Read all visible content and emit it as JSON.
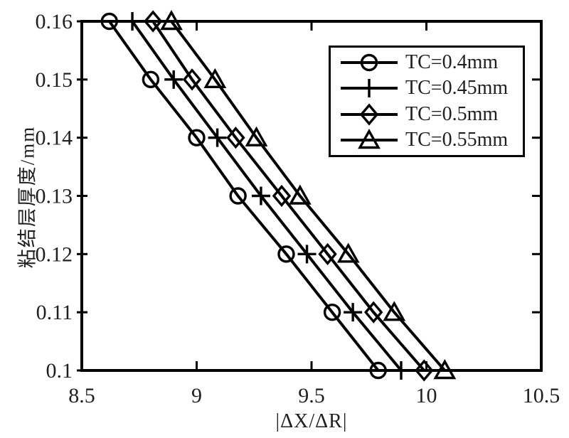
{
  "chart_data": {
    "type": "line",
    "title": "",
    "xlabel": "|ΔX/ΔR|",
    "ylabel": "粘结层厚度/mm",
    "xlim": [
      8.5,
      10.5
    ],
    "ylim": [
      0.1,
      0.16
    ],
    "xticks": [
      8.5,
      9,
      9.5,
      10,
      10.5
    ],
    "xtick_labels": [
      "8.5",
      "9",
      "9.5",
      "10",
      "10.5"
    ],
    "yticks": [
      0.1,
      0.11,
      0.12,
      0.13,
      0.14,
      0.15,
      0.16
    ],
    "ytick_labels": [
      "0.1",
      "0.11",
      "0.12",
      "0.13",
      "0.14",
      "0.15",
      "0.16"
    ],
    "grid": false,
    "background": "#ffffff",
    "line_color": "#000000",
    "text_color": "#1f1f1f",
    "legend_position": "upper-right-inside",
    "y": [
      0.16,
      0.15,
      0.14,
      0.13,
      0.12,
      0.11,
      0.1
    ],
    "series": [
      {
        "name": "TC=0.4mm",
        "marker": "circle",
        "x": [
          8.62,
          8.8,
          9.0,
          9.18,
          9.39,
          9.59,
          9.79
        ]
      },
      {
        "name": "TC=0.45mm",
        "marker": "plus",
        "x": [
          8.72,
          8.9,
          9.09,
          9.28,
          9.48,
          9.68,
          9.89
        ]
      },
      {
        "name": "TC=0.5mm",
        "marker": "diamond",
        "x": [
          8.81,
          8.98,
          9.17,
          9.37,
          9.57,
          9.77,
          9.99
        ]
      },
      {
        "name": "TC=0.55mm",
        "marker": "triangle",
        "x": [
          8.89,
          9.08,
          9.26,
          9.45,
          9.66,
          9.86,
          10.08
        ]
      }
    ]
  }
}
